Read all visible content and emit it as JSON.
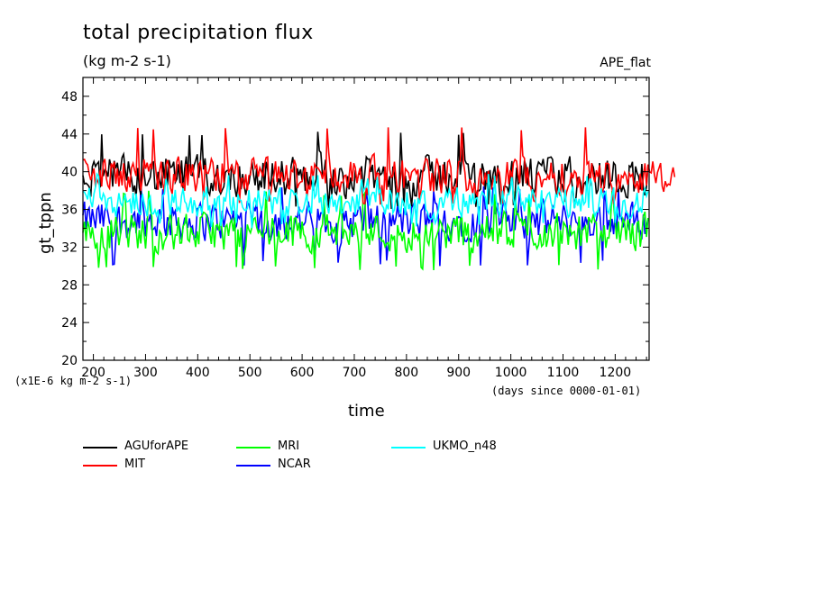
{
  "chart_data": {
    "type": "line",
    "title": "total precipitation flux",
    "units": "(kg m-2 s-1)",
    "experiment": "APE_flat",
    "xlabel": "time",
    "x_units": "(days since 0000-01-01)",
    "ylabel": "gt_tppn",
    "y_scale_note": "(x1E-6 kg m-2 s-1)",
    "xlim": [
      180,
      1265
    ],
    "ylim": [
      20,
      50
    ],
    "x_ticks": [
      "200",
      "300",
      "400",
      "500",
      "600",
      "700",
      "800",
      "900",
      "1000",
      "1100",
      "1200"
    ],
    "y_ticks": [
      "20",
      "24",
      "28",
      "32",
      "36",
      "40",
      "44",
      "48"
    ],
    "legend_position": "bottom-left",
    "series": [
      {
        "name": "AGUforAPE",
        "color": "#000000",
        "x_range": [
          180,
          1265
        ],
        "mean": 39.5,
        "amplitude": 1.9,
        "min": 36.0,
        "max": 44.4
      },
      {
        "name": "MIT",
        "color": "#ff0000",
        "x_range": [
          180,
          1315
        ],
        "mean": 39.6,
        "amplitude": 1.7,
        "min": 36.5,
        "max": 44.8
      },
      {
        "name": "MRI",
        "color": "#00ff00",
        "x_range": [
          180,
          1265
        ],
        "mean": 33.6,
        "amplitude": 1.8,
        "min": 29.5,
        "max": 38.0
      },
      {
        "name": "NCAR",
        "color": "#0000ff",
        "x_range": [
          180,
          1265
        ],
        "mean": 34.8,
        "amplitude": 1.8,
        "min": 30.0,
        "max": 38.5
      },
      {
        "name": "UKMO_n48",
        "color": "#00ffff",
        "x_range": [
          180,
          1265
        ],
        "mean": 36.8,
        "amplitude": 1.4,
        "min": 34.0,
        "max": 39.8
      }
    ]
  }
}
